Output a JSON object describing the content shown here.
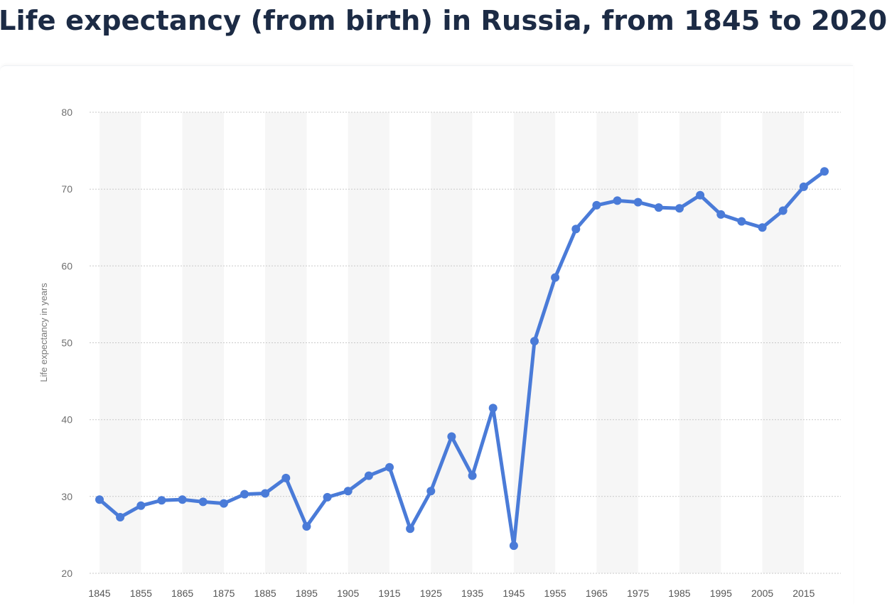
{
  "chart_data": {
    "type": "line",
    "title": "Life expectancy (from birth) in Russia, from 1845 to 2020",
    "xlabel": "",
    "ylabel": "Life expectancy in years",
    "ylim": [
      20,
      80
    ],
    "yticks": [
      20,
      30,
      40,
      50,
      60,
      70,
      80
    ],
    "xtick_labels": [
      "1845",
      "1855",
      "1865",
      "1875",
      "1885",
      "1895",
      "1905",
      "1915",
      "1925",
      "1935",
      "1945",
      "1955",
      "1965",
      "1975",
      "1985",
      "1995",
      "2005",
      "2015"
    ],
    "grid": true,
    "line_color": "#4a7bd8",
    "series": [
      {
        "x": [
          1845,
          1850,
          1855,
          1860,
          1865,
          1870,
          1875,
          1880,
          1885,
          1890,
          1895,
          1900,
          1905,
          1910,
          1915,
          1920,
          1925,
          1930,
          1935,
          1940,
          1945,
          1950,
          1955,
          1960,
          1965,
          1970,
          1975,
          1980,
          1985,
          1990,
          1995,
          2000,
          2005,
          2010,
          2015,
          2020
        ],
        "values": [
          29.6,
          27.3,
          28.8,
          29.5,
          29.6,
          29.3,
          29.1,
          30.3,
          30.4,
          32.4,
          26.1,
          29.9,
          30.7,
          32.7,
          33.8,
          25.8,
          30.7,
          37.8,
          32.7,
          41.5,
          23.6,
          50.2,
          58.5,
          64.8,
          67.9,
          68.5,
          68.3,
          67.6,
          67.5,
          69.2,
          66.7,
          65.8,
          65.0,
          67.2,
          70.3,
          72.3
        ]
      }
    ]
  }
}
